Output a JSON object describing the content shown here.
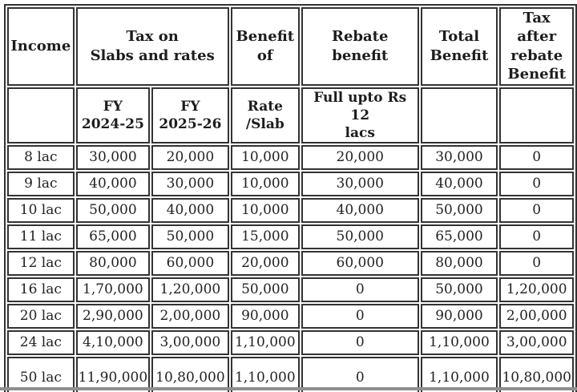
{
  "colors": {
    "table_border": "#333333",
    "background": "#ffffff",
    "text": "#1d1d1d",
    "bottom_strip": "#8f8f8f"
  },
  "table": {
    "header": {
      "income": "Income",
      "tax_on": "Tax on\nSlabs and rates",
      "benefit_of": "Benefit\nof",
      "rebate_benefit": "Rebate benefit",
      "total_benefit": "Total\nBenefit",
      "tax_after": "Tax after\nrebate\nBenefit"
    },
    "subheader": {
      "fy_2024_25": "FY\n2024-25",
      "fy_2025_26": "FY\n2025-26",
      "rate_slab": "Rate\n/Slab",
      "full_upto": "Full upto Rs 12\nlacs"
    },
    "column_keys": [
      "income",
      "fy_2024_25",
      "fy_2025_26",
      "rate_slab",
      "rebate",
      "total",
      "tax_after"
    ],
    "rows": [
      {
        "income": "8 lac",
        "fy_2024_25": "30,000",
        "fy_2025_26": "20,000",
        "rate_slab": "10,000",
        "rebate": "20,000",
        "total": "30,000",
        "tax_after": "0"
      },
      {
        "income": "9 lac",
        "fy_2024_25": "40,000",
        "fy_2025_26": "30,000",
        "rate_slab": "10,000",
        "rebate": "30,000",
        "total": "40,000",
        "tax_after": "0"
      },
      {
        "income": "10 lac",
        "fy_2024_25": "50,000",
        "fy_2025_26": "40,000",
        "rate_slab": "10,000",
        "rebate": "40,000",
        "total": "50,000",
        "tax_after": "0"
      },
      {
        "income": "11 lac",
        "fy_2024_25": "65,000",
        "fy_2025_26": "50,000",
        "rate_slab": "15,000",
        "rebate": "50,000",
        "total": "65,000",
        "tax_after": "0"
      },
      {
        "income": "12 lac",
        "fy_2024_25": "80,000",
        "fy_2025_26": "60,000",
        "rate_slab": "20,000",
        "rebate": "60,000",
        "total": "80,000",
        "tax_after": "0"
      },
      {
        "income": "16 lac",
        "fy_2024_25": "1,70,000",
        "fy_2025_26": "1,20,000",
        "rate_slab": "50,000",
        "rebate": "0",
        "total": "50,000",
        "tax_after": "1,20,000"
      },
      {
        "income": "20 lac",
        "fy_2024_25": "2,90,000",
        "fy_2025_26": "2,00,000",
        "rate_slab": "90,000",
        "rebate": "0",
        "total": "90,000",
        "tax_after": "2,00,000"
      },
      {
        "income": "24 lac",
        "fy_2024_25": "4,10,000",
        "fy_2025_26": "3,00,000",
        "rate_slab": "1,10,000",
        "rebate": "0",
        "total": "1,10,000",
        "tax_after": "3,00,000"
      },
      {
        "income": "50 lac",
        "fy_2024_25": "11,90,000",
        "fy_2025_26": "10,80,000",
        "rate_slab": "1,10,000",
        "rebate": "0",
        "total": "1,10,000",
        "tax_after": "10,80,000"
      }
    ]
  },
  "chart_data": {
    "type": "table",
    "columns": [
      "Income",
      "Tax on Slabs and rates - FY 2024-25",
      "Tax on Slabs and rates - FY 2025-26",
      "Benefit of Rate /Slab",
      "Rebate benefit - Full upto Rs 12 lacs",
      "Total Benefit",
      "Tax after rebate Benefit"
    ],
    "rows": [
      [
        "8 lac",
        "30,000",
        "20,000",
        "10,000",
        "20,000",
        "30,000",
        "0"
      ],
      [
        "9 lac",
        "40,000",
        "30,000",
        "10,000",
        "30,000",
        "40,000",
        "0"
      ],
      [
        "10 lac",
        "50,000",
        "40,000",
        "10,000",
        "40,000",
        "50,000",
        "0"
      ],
      [
        "11 lac",
        "65,000",
        "50,000",
        "15,000",
        "50,000",
        "65,000",
        "0"
      ],
      [
        "12 lac",
        "80,000",
        "60,000",
        "20,000",
        "60,000",
        "80,000",
        "0"
      ],
      [
        "16 lac",
        "1,70,000",
        "1,20,000",
        "50,000",
        "0",
        "50,000",
        "1,20,000"
      ],
      [
        "20 lac",
        "2,90,000",
        "2,00,000",
        "90,000",
        "0",
        "90,000",
        "2,00,000"
      ],
      [
        "24 lac",
        "4,10,000",
        "3,00,000",
        "1,10,000",
        "0",
        "1,10,000",
        "3,00,000"
      ],
      [
        "50 lac",
        "11,90,000",
        "10,80,000",
        "1,10,000",
        "0",
        "1,10,000",
        "10,80,000"
      ]
    ]
  }
}
